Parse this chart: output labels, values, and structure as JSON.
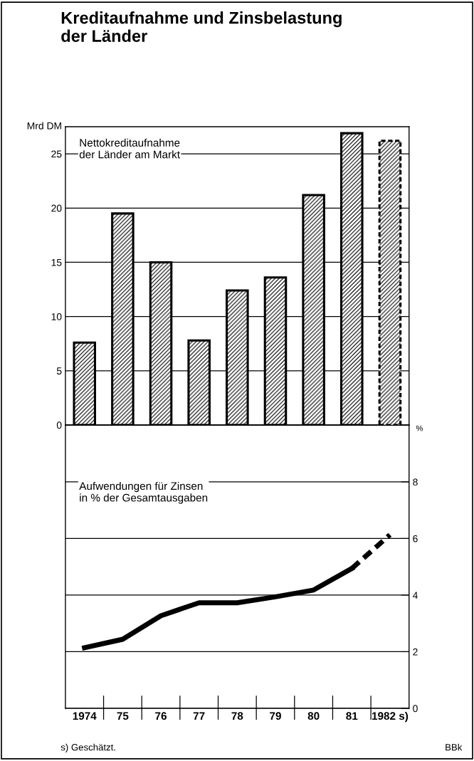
{
  "chart_data": [
    {
      "type": "bar",
      "title": "Kreditaufnahme und Zinsbelastung\nder Länder",
      "ylabel": "Mrd DM",
      "categories": [
        null,
        null,
        null,
        null,
        null,
        null,
        null,
        null,
        null
      ],
      "series": [
        {
          "color": "#000000",
          "line_style": "solid",
          "values": [
            7.6,
            19.5,
            15.0,
            7.8,
            12.4,
            13.6,
            21.2,
            26.9,
            null
          ]
        },
        {
          "color": "#000000",
          "line_style": "dashed",
          "values": [
            null,
            null,
            null,
            null,
            null,
            null,
            null,
            null,
            26.2
          ]
        }
      ],
      "ylim": [
        0,
        27.5
      ],
      "yticks": [
        0,
        5,
        10,
        15,
        20,
        25
      ],
      "grid": "y",
      "tick_labels": "y",
      "annotations": [
        "Nettokreditaufnahme\nder Länder am Markt"
      ]
    },
    {
      "type": "line",
      "ylabel": "%",
      "categories": [
        "1974",
        "75",
        "76",
        "77",
        "78",
        "79",
        "80",
        "81",
        "1982 s)"
      ],
      "series": [
        {
          "color": "#000000",
          "line_style": "solid",
          "values": [
            2.14,
            2.44,
            3.27,
            3.73,
            3.73,
            3.94,
            4.18,
            4.94,
            null
          ]
        },
        {
          "color": "#000000",
          "line_style": "dashed",
          "values": [
            null,
            null,
            null,
            null,
            null,
            null,
            null,
            4.94,
            6.13
          ]
        }
      ],
      "ylim": [
        0,
        10
      ],
      "yticks": [
        0,
        2,
        4,
        6,
        8
      ],
      "grid": "y",
      "annotations": [
        "Aufwendungen für Zinsen\nin % der Gesamtausgaben",
        "s) Geschätzt.",
        "BBk"
      ]
    }
  ]
}
